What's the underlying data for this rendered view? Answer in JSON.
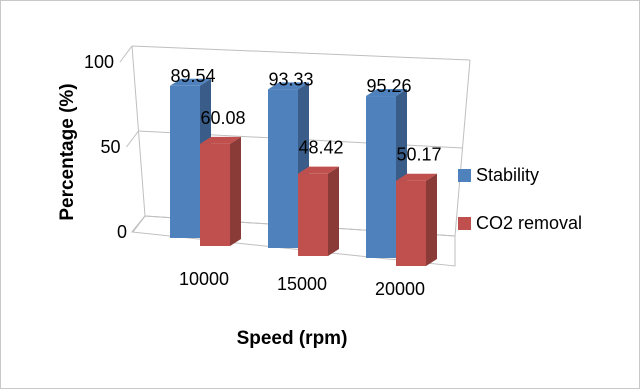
{
  "chart_data": {
    "type": "bar",
    "categories": [
      "10000",
      "15000",
      "20000"
    ],
    "series": [
      {
        "name": "Stability",
        "values": [
          89.54,
          93.33,
          95.26
        ],
        "color": "#4f81bd"
      },
      {
        "name": "CO2 removal",
        "values": [
          60.08,
          48.42,
          50.17
        ],
        "color": "#c0504d"
      }
    ],
    "data_labels": {
      "Stability": [
        "89.54",
        "93.33",
        "95.26"
      ],
      "CO2 removal": [
        "60.08",
        "48.42",
        "50.17"
      ]
    },
    "title": "",
    "xlabel": "Speed (rpm)",
    "ylabel": "Percentage (%)",
    "ylim": [
      0,
      100
    ],
    "yticks": [
      "0",
      "50",
      "100"
    ],
    "grid": true,
    "legend": "right",
    "style": "3d-clustered-column"
  }
}
